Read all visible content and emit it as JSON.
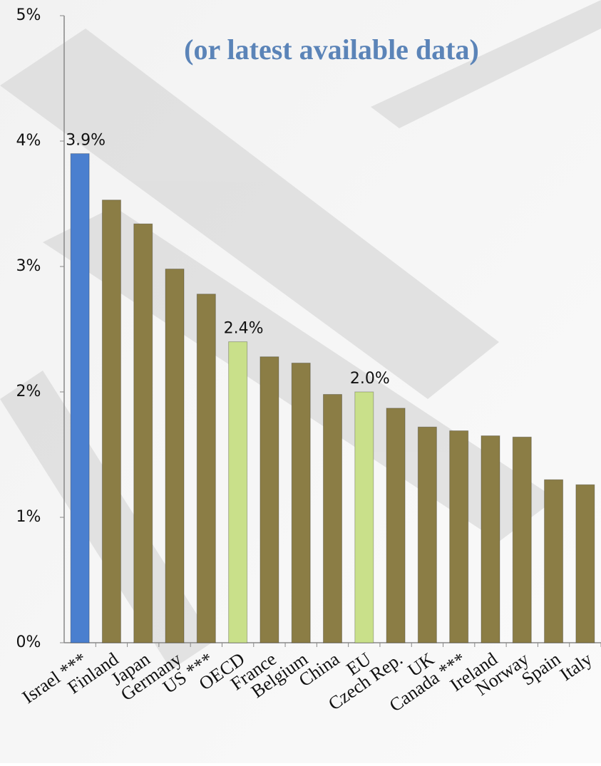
{
  "chart_data": {
    "type": "bar",
    "title": "(or latest available data)",
    "categories": [
      "Israel ***",
      "Finland",
      "Japan",
      "Germany",
      "US ***",
      "OECD",
      "France",
      "Belgium",
      "China",
      "EU",
      "Czech Rep.",
      "UK",
      "Canada ***",
      "Ireland",
      "Norway",
      "Spain",
      "Italy"
    ],
    "values": [
      3.9,
      3.53,
      3.34,
      2.98,
      2.78,
      2.4,
      2.28,
      2.23,
      1.98,
      2.0,
      1.87,
      1.72,
      1.69,
      1.65,
      1.64,
      1.3,
      1.26
    ],
    "value_labels": [
      "3.9%",
      null,
      null,
      null,
      null,
      "2.4%",
      null,
      null,
      null,
      "2.0%",
      null,
      null,
      null,
      null,
      null,
      null,
      null
    ],
    "colors": [
      "#4a7fcf",
      "#8b7d45",
      "#8b7d45",
      "#8b7d45",
      "#8b7d45",
      "#c9e08a",
      "#8b7d45",
      "#8b7d45",
      "#8b7d45",
      "#c9e08a",
      "#8b7d45",
      "#8b7d45",
      "#8b7d45",
      "#8b7d45",
      "#8b7d45",
      "#8b7d45",
      "#8b7d45"
    ],
    "ylim": [
      0,
      5
    ],
    "yticks": [
      {
        "value": 0,
        "label": "0%"
      },
      {
        "value": 1,
        "label": "1%"
      },
      {
        "value": 2,
        "label": "2%"
      },
      {
        "value": 3,
        "label": "3%"
      },
      {
        "value": 4,
        "label": "4%"
      },
      {
        "value": 5,
        "label": "5%"
      }
    ]
  }
}
